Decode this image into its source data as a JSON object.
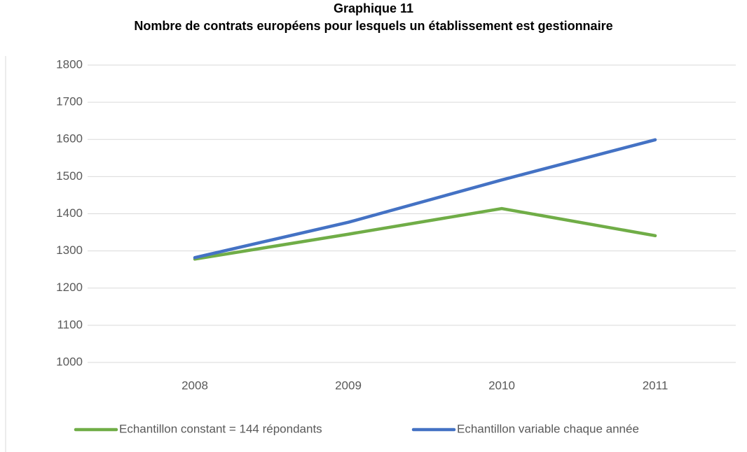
{
  "chart_data": {
    "type": "line",
    "title": "Graphique 11",
    "subtitle": "Nombre de contrats européens pour lesquels un établissement est gestionnaire",
    "categories": [
      "2008",
      "2009",
      "2010",
      "2011"
    ],
    "series": [
      {
        "name": "Echantillon constant = 144 répondants",
        "color": "#70ad47",
        "values": [
          1278,
          1345,
          1414,
          1341
        ]
      },
      {
        "name": "Echantillon variable chaque année",
        "color": "#4472c4",
        "values": [
          1282,
          1377,
          1491,
          1599
        ]
      }
    ],
    "ylim": [
      1000,
      1800
    ],
    "yticks": [
      1000,
      1100,
      1200,
      1300,
      1400,
      1500,
      1600,
      1700,
      1800
    ],
    "grid": true,
    "legend": "bottom"
  }
}
